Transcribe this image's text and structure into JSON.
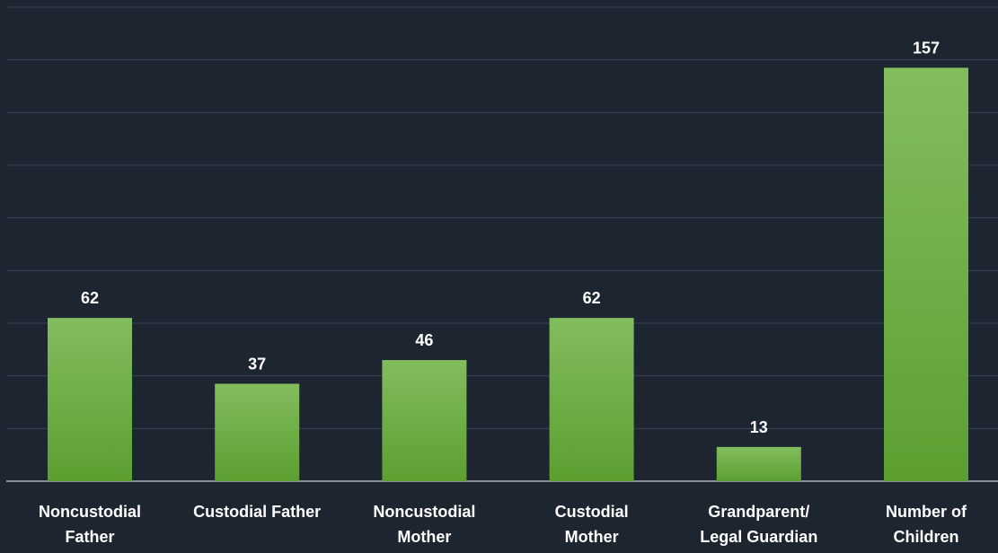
{
  "chart_data": {
    "type": "bar",
    "categories": [
      "Noncustodial\nFather",
      "Custodial Father",
      "Noncustodial\nMother",
      "Custodial\nMother",
      "Grandparent/\nLegal Guardian",
      "Number of\nChildren"
    ],
    "values": [
      62,
      37,
      46,
      62,
      13,
      157
    ],
    "color": "#6aae3e",
    "ylim": [
      0,
      180
    ],
    "yticks": [
      0,
      20,
      40,
      60,
      80,
      100,
      120,
      140,
      160,
      180
    ],
    "grid": true
  }
}
